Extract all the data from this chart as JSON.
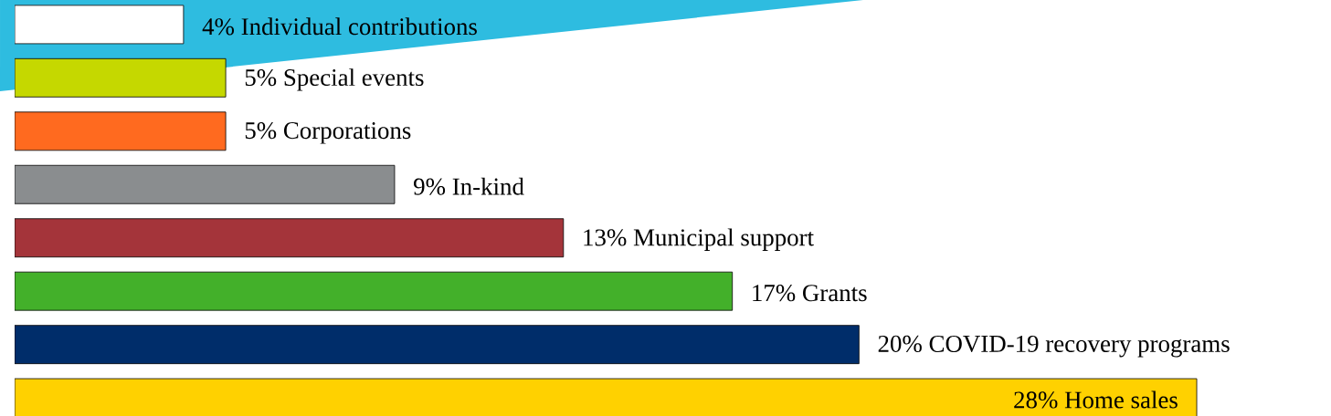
{
  "chart_data": {
    "type": "bar",
    "orientation": "horizontal",
    "categories": [
      "Individual contributions",
      "Special events",
      "Corporations",
      "In-kind",
      "Municipal support",
      "Grants",
      "COVID-19 recovery programs",
      "Home sales"
    ],
    "values": [
      4,
      5,
      5,
      9,
      13,
      17,
      20,
      28
    ],
    "value_labels": [
      "4%",
      "5%",
      "5%",
      "9%",
      "13%",
      "17%",
      "20%",
      "28%"
    ],
    "colors": [
      "#ffffff",
      "#c5d800",
      "#ff6a1f",
      "#8a8d8f",
      "#a4343a",
      "#43b02a",
      "#002d6a",
      "#ffd100"
    ]
  }
}
